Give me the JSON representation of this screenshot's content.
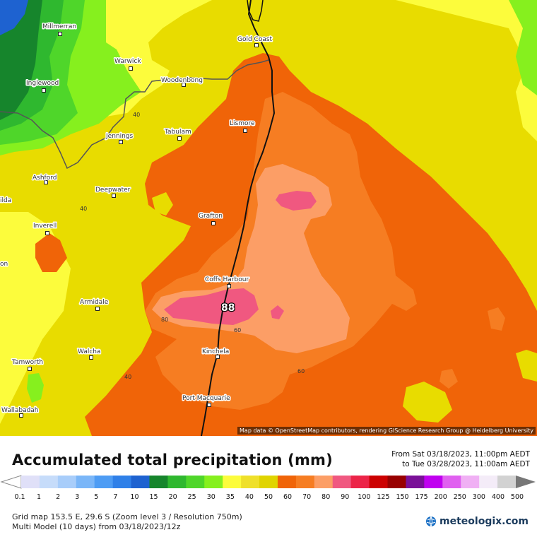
{
  "map": {
    "towns": [
      {
        "id": "millmerran",
        "name": "Millmerran"
      },
      {
        "id": "warwick",
        "name": "Warwick"
      },
      {
        "id": "inglewood",
        "name": "Inglewood"
      },
      {
        "id": "woodenbong",
        "name": "Woodenbong"
      },
      {
        "id": "gold-coast",
        "name": "Gold Coast"
      },
      {
        "id": "lismore",
        "name": "Lismore"
      },
      {
        "id": "tabulam",
        "name": "Tabulam"
      },
      {
        "id": "jennings",
        "name": "Jennings"
      },
      {
        "id": "ashford",
        "name": "Ashford"
      },
      {
        "id": "deepwater",
        "name": "Deepwater"
      },
      {
        "id": "grafton",
        "name": "Grafton"
      },
      {
        "id": "inverell",
        "name": "Inverell"
      },
      {
        "id": "coffs-harbour",
        "name": "Coffs Harbour"
      },
      {
        "id": "armidale",
        "name": "Armidale"
      },
      {
        "id": "kinchela",
        "name": "Kinchela"
      },
      {
        "id": "walcha",
        "name": "Walcha"
      },
      {
        "id": "tamworth",
        "name": "Tamworth"
      },
      {
        "id": "port-macquarie",
        "name": "Port Macquarie"
      },
      {
        "id": "wallabadah",
        "name": "Wallabadah"
      }
    ],
    "edge_labels": [
      "ilda",
      "on"
    ],
    "contour_labels": [
      "40",
      "40",
      "40",
      "60",
      "60",
      "80"
    ],
    "max_value_label": "88",
    "attribution": "Map data © OpenStreetMap contributors, rendering GIScience Research Group @ Heidelberg University"
  },
  "legend": {
    "title": "Accumulated total precipitation (mm)",
    "from_line": "From Sat 03/18/2023, 11:00pm AEDT",
    "to_line": "to Tue 03/28/2023, 11:00am AEDT",
    "scale": [
      {
        "label": "0.1",
        "color": "#e0e0f8"
      },
      {
        "label": "1",
        "color": "#c6dcfa"
      },
      {
        "label": "2",
        "color": "#a8cdfa"
      },
      {
        "label": "3",
        "color": "#7ab6f8"
      },
      {
        "label": "5",
        "color": "#4d9cf4"
      },
      {
        "label": "7",
        "color": "#2f80e8"
      },
      {
        "label": "10",
        "color": "#1e62d0"
      },
      {
        "label": "15",
        "color": "#16852c"
      },
      {
        "label": "20",
        "color": "#2fb82f"
      },
      {
        "label": "25",
        "color": "#4fd62a"
      },
      {
        "label": "30",
        "color": "#86f01e"
      },
      {
        "label": "35",
        "color": "#fcfc3c"
      },
      {
        "label": "40",
        "color": "#efe02a"
      },
      {
        "label": "50",
        "color": "#e0d400"
      },
      {
        "label": "60",
        "color": "#f06408"
      },
      {
        "label": "70",
        "color": "#f67d22"
      },
      {
        "label": "80",
        "color": "#fc9e66"
      },
      {
        "label": "90",
        "color": "#f05880"
      },
      {
        "label": "100",
        "color": "#ec2448"
      },
      {
        "label": "125",
        "color": "#cc0000"
      },
      {
        "label": "150",
        "color": "#980000"
      },
      {
        "label": "175",
        "color": "#7a1098"
      },
      {
        "label": "200",
        "color": "#c000f0"
      },
      {
        "label": "250",
        "color": "#e060f0"
      },
      {
        "label": "300",
        "color": "#f0b0f4"
      },
      {
        "label": "400",
        "color": "#f4ecf8"
      },
      {
        "label": "500",
        "color": "#d2d2d2"
      }
    ],
    "grid_info": "Grid map 153.5 E, 29.6 S (Zoom level 3 / Resolution 750m)",
    "model_info": "Multi Model (10 days) from 03/18/2023/12z",
    "brand": "meteologix.com"
  }
}
